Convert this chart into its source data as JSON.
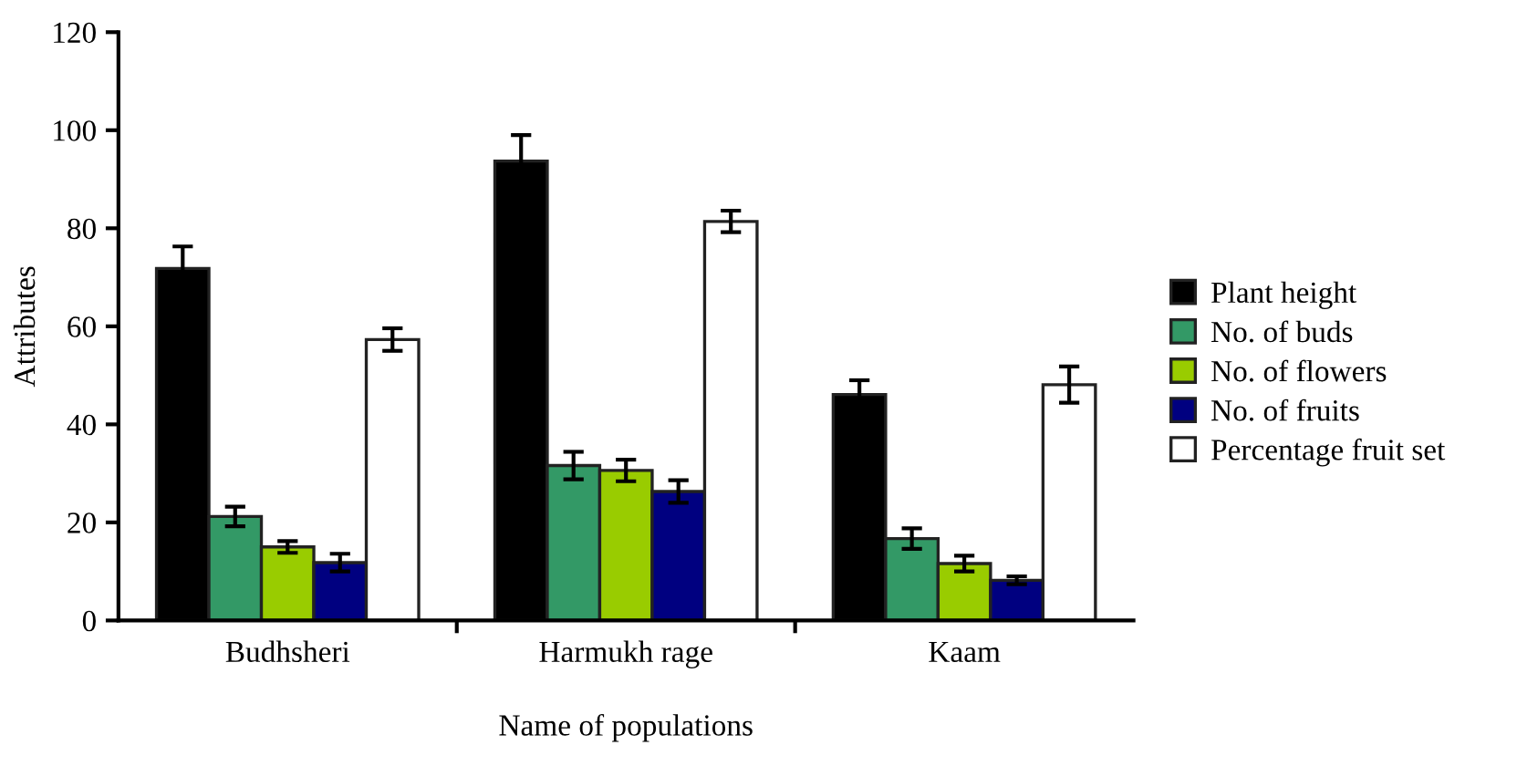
{
  "chart_data": {
    "type": "bar",
    "ylabel": "Attributes",
    "xlabel": "Name of populations",
    "categories": [
      "Budhsheri",
      "Harmukh rage",
      "Kaam"
    ],
    "series": [
      {
        "name": "Plant height",
        "color": "#000000",
        "values": [
          71.8,
          93.7,
          46.1
        ],
        "errors": [
          4.5,
          5.3,
          2.9
        ]
      },
      {
        "name": "No. of buds",
        "color": "#339966",
        "values": [
          21.2,
          31.6,
          16.7
        ],
        "errors": [
          2.0,
          2.8,
          2.1
        ]
      },
      {
        "name": "No. of flowers",
        "color": "#99cc00",
        "values": [
          15.0,
          30.6,
          11.6
        ],
        "errors": [
          1.2,
          2.2,
          1.6
        ]
      },
      {
        "name": "No. of fruits",
        "color": "#000080",
        "values": [
          11.8,
          26.3,
          8.2
        ],
        "errors": [
          1.8,
          2.3,
          0.8
        ]
      },
      {
        "name": "Percentage fruit set",
        "color": "#ffffff",
        "values": [
          57.3,
          81.4,
          48.1
        ],
        "errors": [
          2.3,
          2.2,
          3.7
        ]
      }
    ],
    "ylim": [
      0,
      120
    ],
    "yticks": [
      0,
      20,
      40,
      60,
      80,
      100,
      120
    ],
    "grid": false,
    "legend": "right"
  }
}
